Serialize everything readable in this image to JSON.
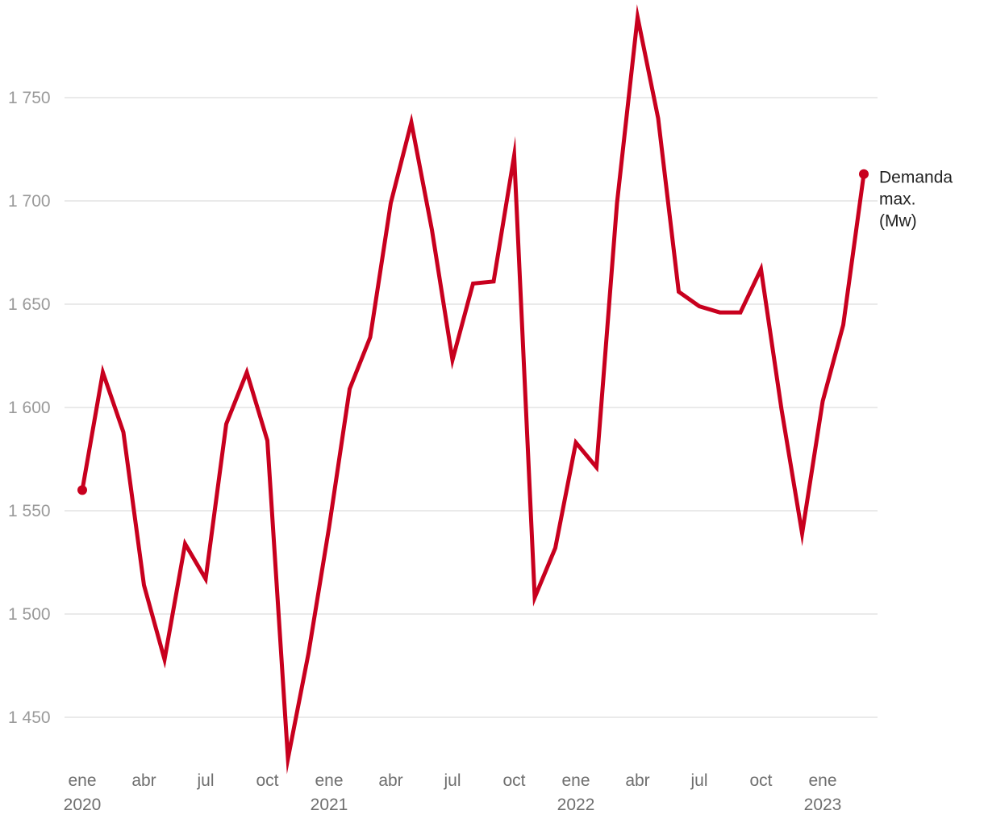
{
  "chart_data": {
    "type": "line",
    "title": "",
    "xlabel": "",
    "ylabel": "",
    "ylim": [
      1430,
      1790
    ],
    "grid": true,
    "y_ticks": [
      1450,
      1500,
      1550,
      1600,
      1650,
      1700,
      1750
    ],
    "y_tick_labels": [
      "1 450",
      "1 500",
      "1 550",
      "1 600",
      "1 650",
      "1 700",
      "1 750"
    ],
    "x_ticks": [
      {
        "index": 0,
        "month": "ene",
        "year": "2020"
      },
      {
        "index": 3,
        "month": "abr",
        "year": ""
      },
      {
        "index": 6,
        "month": "jul",
        "year": ""
      },
      {
        "index": 9,
        "month": "oct",
        "year": ""
      },
      {
        "index": 12,
        "month": "ene",
        "year": "2021"
      },
      {
        "index": 15,
        "month": "abr",
        "year": ""
      },
      {
        "index": 18,
        "month": "jul",
        "year": ""
      },
      {
        "index": 21,
        "month": "oct",
        "year": ""
      },
      {
        "index": 24,
        "month": "ene",
        "year": "2022"
      },
      {
        "index": 27,
        "month": "abr",
        "year": ""
      },
      {
        "index": 30,
        "month": "jul",
        "year": ""
      },
      {
        "index": 33,
        "month": "oct",
        "year": ""
      },
      {
        "index": 36,
        "month": "ene",
        "year": "2023"
      }
    ],
    "series": [
      {
        "name": "Demanda max. (Mw)",
        "label_lines": [
          "Demanda",
          "max.",
          "(Mw)"
        ],
        "color": "#c8001e",
        "values": [
          1560,
          1617,
          1588,
          1514,
          1478,
          1534,
          1517,
          1592,
          1617,
          1584,
          1430,
          1481,
          1542,
          1609,
          1634,
          1699,
          1738,
          1686,
          1623,
          1660,
          1661,
          1722,
          1508,
          1532,
          1583,
          1571,
          1699,
          1789,
          1740,
          1656,
          1649,
          1646,
          1646,
          1667,
          1599,
          1539,
          1603,
          1640,
          1713
        ]
      }
    ]
  }
}
